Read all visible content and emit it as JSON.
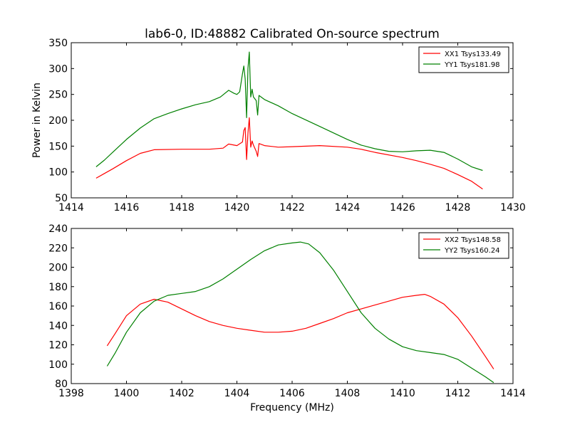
{
  "title": "lab6-0, ID:48882 Calibrated On-source spectrum",
  "chart_data": [
    {
      "type": "line",
      "ylabel": "Power in Kelvin",
      "xlabel": "",
      "xlim": [
        1414,
        1430
      ],
      "ylim": [
        50,
        350
      ],
      "xticks": [
        "1414",
        "1416",
        "1418",
        "1420",
        "1422",
        "1424",
        "1426",
        "1428",
        "1430"
      ],
      "yticks": [
        "50",
        "100",
        "150",
        "200",
        "250",
        "300",
        "350"
      ],
      "grid": false,
      "legend": "top-right",
      "series": [
        {
          "name": "XX1 Tsys133.49",
          "color": "#ff0000",
          "x": [
            1414.9,
            1415.2,
            1415.5,
            1416.0,
            1416.5,
            1417.0,
            1418.0,
            1419.0,
            1419.5,
            1419.7,
            1420.0,
            1420.2,
            1420.25,
            1420.3,
            1420.35,
            1420.4,
            1420.45,
            1420.5,
            1420.55,
            1420.6,
            1420.7,
            1420.75,
            1420.8,
            1421.0,
            1421.5,
            1422.0,
            1423.0,
            1424.0,
            1424.5,
            1425.0,
            1426.0,
            1426.5,
            1427.0,
            1427.5,
            1428.0,
            1428.5,
            1428.9
          ],
          "y": [
            88,
            97,
            106,
            122,
            136,
            143,
            144,
            144,
            146,
            154,
            151,
            158,
            180,
            186,
            124,
            175,
            205,
            148,
            160,
            152,
            140,
            130,
            155,
            151,
            148,
            149,
            151,
            148,
            144,
            138,
            128,
            122,
            115,
            107,
            95,
            82,
            67
          ]
        },
        {
          "name": "YY1 Tsys181.98",
          "color": "#008000",
          "x": [
            1414.9,
            1415.2,
            1415.5,
            1416.0,
            1416.5,
            1417.0,
            1417.5,
            1418.0,
            1418.5,
            1419.0,
            1419.4,
            1419.7,
            1419.9,
            1420.0,
            1420.1,
            1420.2,
            1420.25,
            1420.3,
            1420.35,
            1420.4,
            1420.45,
            1420.5,
            1420.55,
            1420.6,
            1420.7,
            1420.75,
            1420.8,
            1421.0,
            1421.5,
            1422.0,
            1423.0,
            1424.0,
            1424.5,
            1425.0,
            1425.5,
            1426.0,
            1426.5,
            1427.0,
            1427.5,
            1428.0,
            1428.5,
            1428.9
          ],
          "y": [
            110,
            123,
            138,
            163,
            185,
            203,
            213,
            222,
            230,
            236,
            245,
            258,
            252,
            250,
            255,
            290,
            305,
            280,
            205,
            300,
            332,
            245,
            260,
            245,
            238,
            210,
            248,
            240,
            228,
            213,
            188,
            163,
            152,
            145,
            140,
            139,
            141,
            142,
            138,
            125,
            110,
            103
          ]
        }
      ]
    },
    {
      "type": "line",
      "ylabel": "",
      "xlabel": "Frequency (MHz)",
      "xlim": [
        1398,
        1414
      ],
      "ylim": [
        80,
        240
      ],
      "xticks": [
        "1398",
        "1400",
        "1402",
        "1404",
        "1406",
        "1408",
        "1410",
        "1412",
        "1414"
      ],
      "yticks": [
        "80",
        "100",
        "120",
        "140",
        "160",
        "180",
        "200",
        "220",
        "240"
      ],
      "grid": false,
      "legend": "top-right",
      "series": [
        {
          "name": "XX2 Tsys148.58",
          "color": "#ff0000",
          "x": [
            1399.3,
            1399.6,
            1400.0,
            1400.5,
            1401.0,
            1401.5,
            1402.0,
            1402.5,
            1403.0,
            1403.5,
            1404.0,
            1404.5,
            1405.0,
            1405.5,
            1406.0,
            1406.5,
            1407.0,
            1407.5,
            1408.0,
            1408.5,
            1409.0,
            1409.5,
            1410.0,
            1410.5,
            1410.8,
            1411.0,
            1411.5,
            1412.0,
            1412.5,
            1413.0,
            1413.3
          ],
          "y": [
            119,
            132,
            150,
            162,
            167,
            164,
            157,
            150,
            144,
            140,
            137,
            135,
            133,
            133,
            134,
            137,
            142,
            147,
            153,
            157,
            161,
            165,
            169,
            171,
            172,
            170,
            162,
            148,
            129,
            108,
            95
          ]
        },
        {
          "name": "YY2 Tsys160.24",
          "color": "#008000",
          "x": [
            1399.3,
            1399.6,
            1400.0,
            1400.5,
            1401.0,
            1401.5,
            1402.0,
            1402.5,
            1403.0,
            1403.5,
            1404.0,
            1404.5,
            1405.0,
            1405.5,
            1406.0,
            1406.3,
            1406.6,
            1407.0,
            1407.5,
            1408.0,
            1408.5,
            1409.0,
            1409.5,
            1410.0,
            1410.5,
            1411.0,
            1411.5,
            1412.0,
            1412.5,
            1413.0,
            1413.3
          ],
          "y": [
            98,
            112,
            133,
            153,
            165,
            171,
            173,
            175,
            180,
            188,
            198,
            208,
            217,
            223,
            225,
            226,
            224,
            215,
            197,
            175,
            153,
            137,
            126,
            118,
            114,
            112,
            110,
            105,
            96,
            87,
            81
          ]
        }
      ]
    }
  ]
}
